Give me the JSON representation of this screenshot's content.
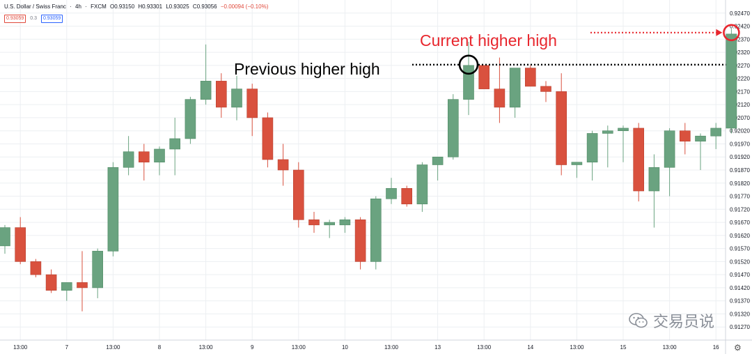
{
  "header": {
    "symbol": "U.S. Dollar / Swiss Franc",
    "interval": "4h",
    "source": "FXCM",
    "open": "O0.93150",
    "high": "H0.93301",
    "low": "L0.93025",
    "close": "C0.93056",
    "change": "−0.00094 (−0.10%)"
  },
  "price_boxes": {
    "sell": "0.93059",
    "spread": "0.3",
    "buy": "0.93059"
  },
  "watermark": {
    "text": "交易员说",
    "icon": "wechat-icon"
  },
  "settings_icon": "gear-icon",
  "colors": {
    "up": "#6aa380",
    "down": "#d9513e",
    "grid": "#eceff2",
    "annotation_red": "#e8262d",
    "annotation_black": "#000000"
  },
  "chart_data": {
    "type": "candlestick",
    "grid": true,
    "y_axis": {
      "range": [
        0.9122,
        0.9252
      ],
      "tick_step": 0.0005,
      "decimals": 5
    },
    "x_axis": {
      "labels": [
        {
          "index": 1,
          "text": "13:00"
        },
        {
          "index": 4,
          "text": "7"
        },
        {
          "index": 7,
          "text": "13:00"
        },
        {
          "index": 10,
          "text": "8"
        },
        {
          "index": 13,
          "text": "13:00"
        },
        {
          "index": 16,
          "text": "9"
        },
        {
          "index": 19,
          "text": "13:00"
        },
        {
          "index": 22,
          "text": "10"
        },
        {
          "index": 25,
          "text": "13:00"
        },
        {
          "index": 28,
          "text": "13"
        },
        {
          "index": 31,
          "text": "13:00"
        },
        {
          "index": 34,
          "text": "14"
        },
        {
          "index": 37,
          "text": "13:00"
        },
        {
          "index": 40,
          "text": "15"
        },
        {
          "index": 43,
          "text": "13:00"
        },
        {
          "index": 46,
          "text": "16"
        }
      ]
    },
    "candles": [
      {
        "o": 0.9158,
        "h": 0.9166,
        "l": 0.9155,
        "c": 0.9165
      },
      {
        "o": 0.9165,
        "h": 0.9169,
        "l": 0.9151,
        "c": 0.9152
      },
      {
        "o": 0.9152,
        "h": 0.9153,
        "l": 0.9146,
        "c": 0.9147
      },
      {
        "o": 0.9147,
        "h": 0.9149,
        "l": 0.914,
        "c": 0.9141
      },
      {
        "o": 0.9141,
        "h": 0.9144,
        "l": 0.9137,
        "c": 0.9144
      },
      {
        "o": 0.9144,
        "h": 0.9156,
        "l": 0.9133,
        "c": 0.9142
      },
      {
        "o": 0.9142,
        "h": 0.9157,
        "l": 0.9138,
        "c": 0.9156
      },
      {
        "o": 0.9156,
        "h": 0.919,
        "l": 0.9154,
        "c": 0.9188
      },
      {
        "o": 0.9188,
        "h": 0.92,
        "l": 0.9185,
        "c": 0.9194
      },
      {
        "o": 0.9194,
        "h": 0.9197,
        "l": 0.9183,
        "c": 0.919
      },
      {
        "o": 0.919,
        "h": 0.9196,
        "l": 0.9185,
        "c": 0.9195
      },
      {
        "o": 0.9195,
        "h": 0.9207,
        "l": 0.9185,
        "c": 0.9199
      },
      {
        "o": 0.9199,
        "h": 0.9215,
        "l": 0.9197,
        "c": 0.9214
      },
      {
        "o": 0.9214,
        "h": 0.9235,
        "l": 0.9212,
        "c": 0.9221
      },
      {
        "o": 0.9221,
        "h": 0.9224,
        "l": 0.9207,
        "c": 0.9211
      },
      {
        "o": 0.9211,
        "h": 0.9223,
        "l": 0.9206,
        "c": 0.9218
      },
      {
        "o": 0.9218,
        "h": 0.922,
        "l": 0.92,
        "c": 0.9207
      },
      {
        "o": 0.9207,
        "h": 0.9209,
        "l": 0.9188,
        "c": 0.9191
      },
      {
        "o": 0.9191,
        "h": 0.9197,
        "l": 0.9181,
        "c": 0.9187
      },
      {
        "o": 0.9187,
        "h": 0.919,
        "l": 0.9165,
        "c": 0.9168
      },
      {
        "o": 0.9168,
        "h": 0.9171,
        "l": 0.9163,
        "c": 0.9166
      },
      {
        "o": 0.9166,
        "h": 0.9168,
        "l": 0.9161,
        "c": 0.9167
      },
      {
        "o": 0.9166,
        "h": 0.9169,
        "l": 0.9163,
        "c": 0.9168
      },
      {
        "o": 0.9168,
        "h": 0.9169,
        "l": 0.9149,
        "c": 0.9152
      },
      {
        "o": 0.9152,
        "h": 0.9177,
        "l": 0.9149,
        "c": 0.9176
      },
      {
        "o": 0.9176,
        "h": 0.9184,
        "l": 0.9174,
        "c": 0.918
      },
      {
        "o": 0.918,
        "h": 0.9181,
        "l": 0.9173,
        "c": 0.9174
      },
      {
        "o": 0.9174,
        "h": 0.919,
        "l": 0.9171,
        "c": 0.9189
      },
      {
        "o": 0.9189,
        "h": 0.9192,
        "l": 0.9183,
        "c": 0.9192
      },
      {
        "o": 0.9192,
        "h": 0.9216,
        "l": 0.9191,
        "c": 0.9214
      },
      {
        "o": 0.9214,
        "h": 0.9236,
        "l": 0.9208,
        "c": 0.9227
      },
      {
        "o": 0.9227,
        "h": 0.9227,
        "l": 0.9218,
        "c": 0.9218
      },
      {
        "o": 0.9218,
        "h": 0.923,
        "l": 0.9205,
        "c": 0.9211
      },
      {
        "o": 0.9211,
        "h": 0.9226,
        "l": 0.9207,
        "c": 0.9226
      },
      {
        "o": 0.9226,
        "h": 0.9227,
        "l": 0.9219,
        "c": 0.9219
      },
      {
        "o": 0.9219,
        "h": 0.9221,
        "l": 0.9213,
        "c": 0.9217
      },
      {
        "o": 0.9217,
        "h": 0.9224,
        "l": 0.9185,
        "c": 0.9189
      },
      {
        "o": 0.9189,
        "h": 0.919,
        "l": 0.9184,
        "c": 0.919
      },
      {
        "o": 0.919,
        "h": 0.9202,
        "l": 0.9183,
        "c": 0.9201
      },
      {
        "o": 0.9201,
        "h": 0.9204,
        "l": 0.9188,
        "c": 0.9202
      },
      {
        "o": 0.9202,
        "h": 0.9204,
        "l": 0.919,
        "c": 0.9203
      },
      {
        "o": 0.9203,
        "h": 0.9205,
        "l": 0.9175,
        "c": 0.9179
      },
      {
        "o": 0.9179,
        "h": 0.9193,
        "l": 0.9165,
        "c": 0.9188
      },
      {
        "o": 0.9188,
        "h": 0.9203,
        "l": 0.9177,
        "c": 0.9202
      },
      {
        "o": 0.9202,
        "h": 0.9205,
        "l": 0.9193,
        "c": 0.9198
      },
      {
        "o": 0.9198,
        "h": 0.9201,
        "l": 0.9187,
        "c": 0.92
      },
      {
        "o": 0.92,
        "h": 0.9205,
        "l": 0.9195,
        "c": 0.9203
      },
      {
        "o": 0.9203,
        "h": 0.9241,
        "l": 0.9201,
        "c": 0.9239
      }
    ],
    "annotations": [
      {
        "text": "Current higher high",
        "color": "#e8262d",
        "candle_index": 47,
        "price": 0.9239,
        "style": "dotted-arrow-circle"
      },
      {
        "text": "Previous higher high",
        "color": "#000000",
        "candle_index": 30,
        "price": 0.9227,
        "style": "dotted-line-circle"
      }
    ]
  }
}
